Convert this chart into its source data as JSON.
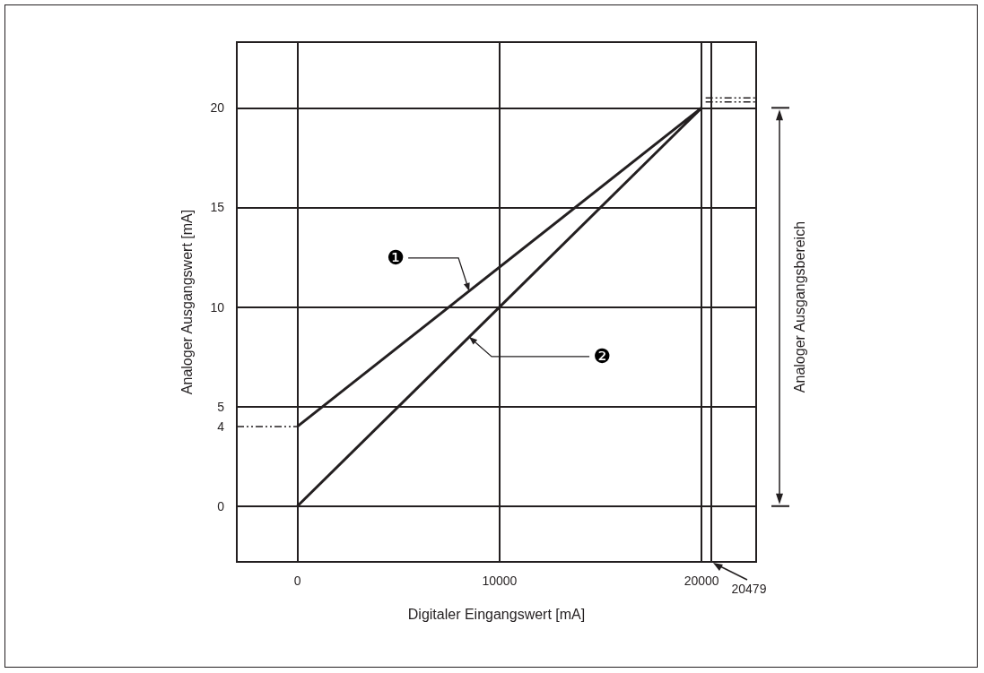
{
  "chart_data": {
    "type": "line",
    "xlabel": "Digitaler Eingangswert [mA]",
    "ylabel": "Analoger Ausgangswert [mA]",
    "xlim": [
      -3000,
      22700
    ],
    "ylim": [
      -2.8,
      23.3
    ],
    "xticks": [
      0,
      10000,
      20000,
      {
        "value": 20479,
        "label": null
      }
    ],
    "yticks": [
      0,
      4,
      5,
      10,
      15,
      20
    ],
    "grid": true,
    "marker": "none",
    "series": [
      {
        "color": "#231f20",
        "x": [
          0,
          20000
        ],
        "values": [
          4,
          20
        ],
        "line_style": "solid"
      },
      {
        "color": "#231f20",
        "x": [
          0,
          20000
        ],
        "values": [
          0,
          20
        ],
        "line_style": "solid"
      },
      {
        "color": "#231f20",
        "x": [
          -3000,
          0
        ],
        "values": [
          4,
          4
        ],
        "line_style": "dashed"
      },
      {
        "color": "#231f20",
        "x": [
          20200,
          22700
        ],
        "values": [
          20.3,
          20.3
        ],
        "line_style": "dashed"
      },
      {
        "color": "#231f20",
        "x": [
          20200,
          22700
        ],
        "values": [
          20.5,
          20.5
        ],
        "line_style": "dashed"
      }
    ],
    "annotations": [
      {
        "text": "❶",
        "x": 8500,
        "y": 10.8
      },
      {
        "text": "❷",
        "x": 8500,
        "y": 8.5
      },
      "Analoger Ausgangsbereich",
      "20479"
    ]
  }
}
